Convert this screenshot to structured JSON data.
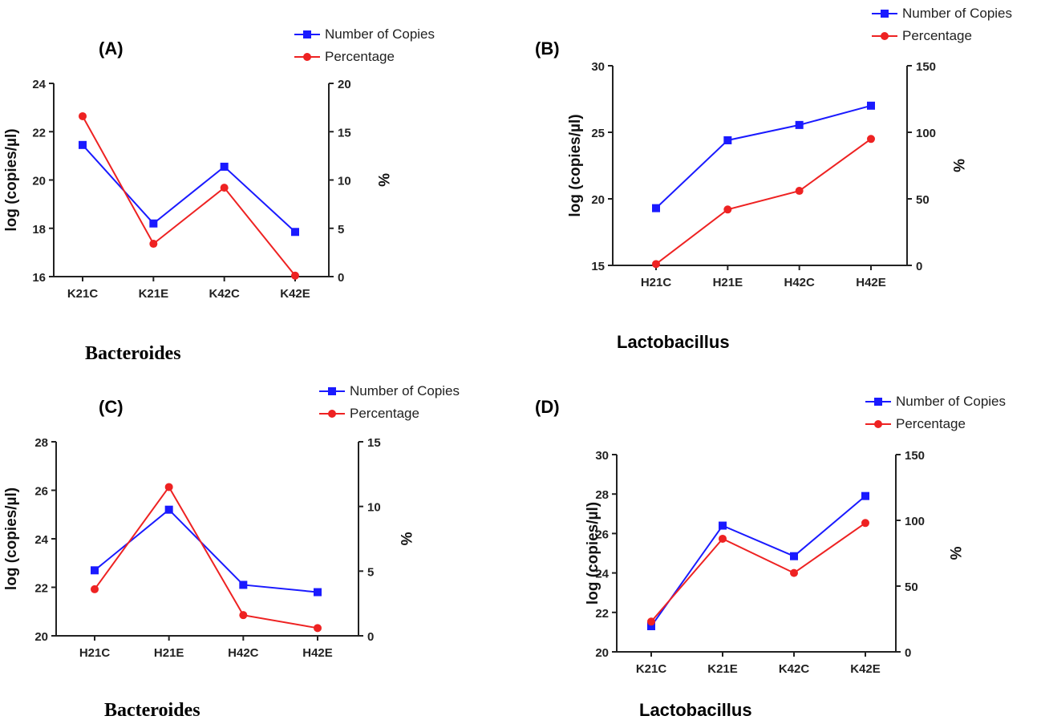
{
  "colors": {
    "copies": "#1a1aff",
    "percentage": "#ee2222",
    "axis": "#222222"
  },
  "chart_data": [
    {
      "id": "A",
      "type": "line",
      "panel_label": "(A)",
      "caption": "Bacteroides",
      "categories": [
        "K21C",
        "K21E",
        "K42C",
        "K42E"
      ],
      "ylabel": "log (copies/µl)",
      "ylim": [
        16,
        24
      ],
      "yticks": [
        16,
        18,
        20,
        22,
        24
      ],
      "y2label": "%",
      "y2lim": [
        0,
        20
      ],
      "y2ticks": [
        0,
        5,
        10,
        15,
        20
      ],
      "legend": [
        "Number of Copies",
        "Percentage"
      ],
      "series": [
        {
          "name": "Number of Copies",
          "axis": "left",
          "marker": "square",
          "values": [
            21.45,
            18.2,
            20.55,
            17.85
          ]
        },
        {
          "name": "Percentage",
          "axis": "right",
          "marker": "circle",
          "values": [
            16.6,
            3.4,
            9.2,
            0.1
          ]
        }
      ]
    },
    {
      "id": "B",
      "type": "line",
      "panel_label": "(B)",
      "caption": "Lactobacillus",
      "categories": [
        "H21C",
        "H21E",
        "H42C",
        "H42E"
      ],
      "ylabel": "log (copies/µl)",
      "ylim": [
        15,
        30
      ],
      "yticks": [
        15,
        20,
        25,
        30
      ],
      "y2label": "%",
      "y2lim": [
        0,
        150
      ],
      "y2ticks": [
        0,
        50,
        100,
        150
      ],
      "legend": [
        "Number of Copies",
        "Percentage"
      ],
      "series": [
        {
          "name": "Number of Copies",
          "axis": "left",
          "marker": "square",
          "values": [
            19.3,
            24.4,
            25.55,
            27.0
          ]
        },
        {
          "name": "Percentage",
          "axis": "right",
          "marker": "circle",
          "values": [
            1.0,
            42.0,
            56.0,
            95.0
          ]
        }
      ]
    },
    {
      "id": "C",
      "type": "line",
      "panel_label": "(C)",
      "caption": "Bacteroides",
      "categories": [
        "H21C",
        "H21E",
        "H42C",
        "H42E"
      ],
      "ylabel": "log (copies/µl)",
      "ylim": [
        20,
        28
      ],
      "yticks": [
        20,
        22,
        24,
        26,
        28
      ],
      "y2label": "%",
      "y2lim": [
        0,
        15
      ],
      "y2ticks": [
        0,
        5,
        10,
        15
      ],
      "legend": [
        "Number of Copies",
        "Percentage"
      ],
      "series": [
        {
          "name": "Number of Copies",
          "axis": "left",
          "marker": "square",
          "values": [
            22.7,
            25.2,
            22.1,
            21.8
          ]
        },
        {
          "name": "Percentage",
          "axis": "right",
          "marker": "circle",
          "values": [
            3.6,
            11.5,
            1.6,
            0.6
          ]
        }
      ]
    },
    {
      "id": "D",
      "type": "line",
      "panel_label": "(D)",
      "caption": "Lactobacillus",
      "categories": [
        "K21C",
        "K21E",
        "K42C",
        "K42E"
      ],
      "ylabel": "log (copies/µl)",
      "ylim": [
        20,
        30
      ],
      "yticks": [
        20,
        22,
        24,
        26,
        28,
        30
      ],
      "y2label": "%",
      "y2lim": [
        0,
        150
      ],
      "y2ticks": [
        0,
        50,
        100,
        150
      ],
      "legend": [
        "Number of Copies",
        "Percentage"
      ],
      "series": [
        {
          "name": "Number of Copies",
          "axis": "left",
          "marker": "square",
          "values": [
            21.3,
            26.4,
            24.85,
            27.9
          ]
        },
        {
          "name": "Percentage",
          "axis": "right",
          "marker": "circle",
          "values": [
            23.0,
            86.0,
            60.0,
            98.0
          ]
        }
      ]
    }
  ]
}
